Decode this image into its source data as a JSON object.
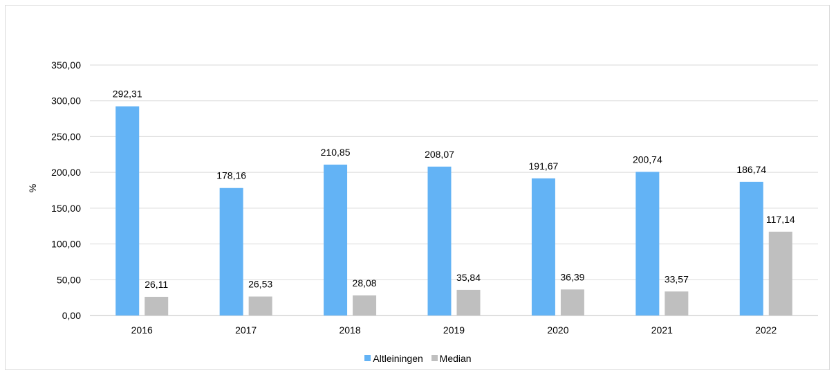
{
  "chart_data": {
    "type": "bar",
    "title": "",
    "xlabel": "",
    "ylabel": "%",
    "ylim": [
      0,
      350
    ],
    "yticks": [
      "0,00",
      "50,00",
      "100,00",
      "150,00",
      "200,00",
      "250,00",
      "300,00",
      "350,00"
    ],
    "ytick_values": [
      0,
      50,
      100,
      150,
      200,
      250,
      300,
      350
    ],
    "categories": [
      "2016",
      "2017",
      "2018",
      "2019",
      "2020",
      "2021",
      "2022"
    ],
    "series": [
      {
        "name": "Altleiningen",
        "color": "#63b3f5",
        "values": [
          292.31,
          178.16,
          210.85,
          208.07,
          191.67,
          200.74,
          186.74
        ],
        "labels": [
          "292,31",
          "178,16",
          "210,85",
          "208,07",
          "191,67",
          "200,74",
          "186,74"
        ]
      },
      {
        "name": "Median",
        "color": "#bfbfbf",
        "values": [
          26.11,
          26.53,
          28.08,
          35.84,
          36.39,
          33.57,
          117.14
        ],
        "labels": [
          "26,11",
          "26,53",
          "28,08",
          "35,84",
          "36,39",
          "33,57",
          "117,14"
        ]
      }
    ],
    "grid": true,
    "legend_position": "bottom"
  }
}
